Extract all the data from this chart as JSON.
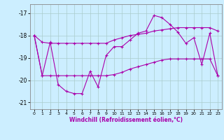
{
  "xlabel": "Windchill (Refroidissement éolien,°C)",
  "ylabel": "",
  "bg_color": "#cceeff",
  "grid_color": "#aacccc",
  "line_color": "#aa00aa",
  "xlim": [
    -0.5,
    23.5
  ],
  "ylim": [
    -21.3,
    -16.6
  ],
  "yticks": [
    -21,
    -20,
    -19,
    -18,
    -17
  ],
  "xticks": [
    0,
    1,
    2,
    3,
    4,
    5,
    6,
    7,
    8,
    9,
    10,
    11,
    12,
    13,
    14,
    15,
    16,
    17,
    18,
    19,
    20,
    21,
    22,
    23
  ],
  "main_y": [
    -18.0,
    -19.8,
    -18.3,
    -20.2,
    -20.5,
    -20.6,
    -20.6,
    -19.6,
    -20.3,
    -18.9,
    -18.5,
    -18.5,
    -18.2,
    -17.9,
    -17.8,
    -17.1,
    -17.2,
    -17.5,
    -17.85,
    -18.35,
    -18.1,
    -19.3,
    -17.9,
    -19.8
  ],
  "upper_y": [
    -18.0,
    -18.3,
    -18.35,
    -18.35,
    -18.35,
    -18.35,
    -18.35,
    -18.35,
    -18.35,
    -18.35,
    -18.2,
    -18.1,
    -18.0,
    -17.95,
    -17.9,
    -17.8,
    -17.75,
    -17.7,
    -17.65,
    -17.65,
    -17.65,
    -17.65,
    -17.65,
    -17.8
  ],
  "lower_y": [
    -18.0,
    -19.8,
    -19.8,
    -19.8,
    -19.8,
    -19.8,
    -19.8,
    -19.8,
    -19.8,
    -19.8,
    -19.75,
    -19.65,
    -19.5,
    -19.4,
    -19.3,
    -19.2,
    -19.1,
    -19.05,
    -19.05,
    -19.05,
    -19.05,
    -19.05,
    -19.05,
    -19.8
  ]
}
